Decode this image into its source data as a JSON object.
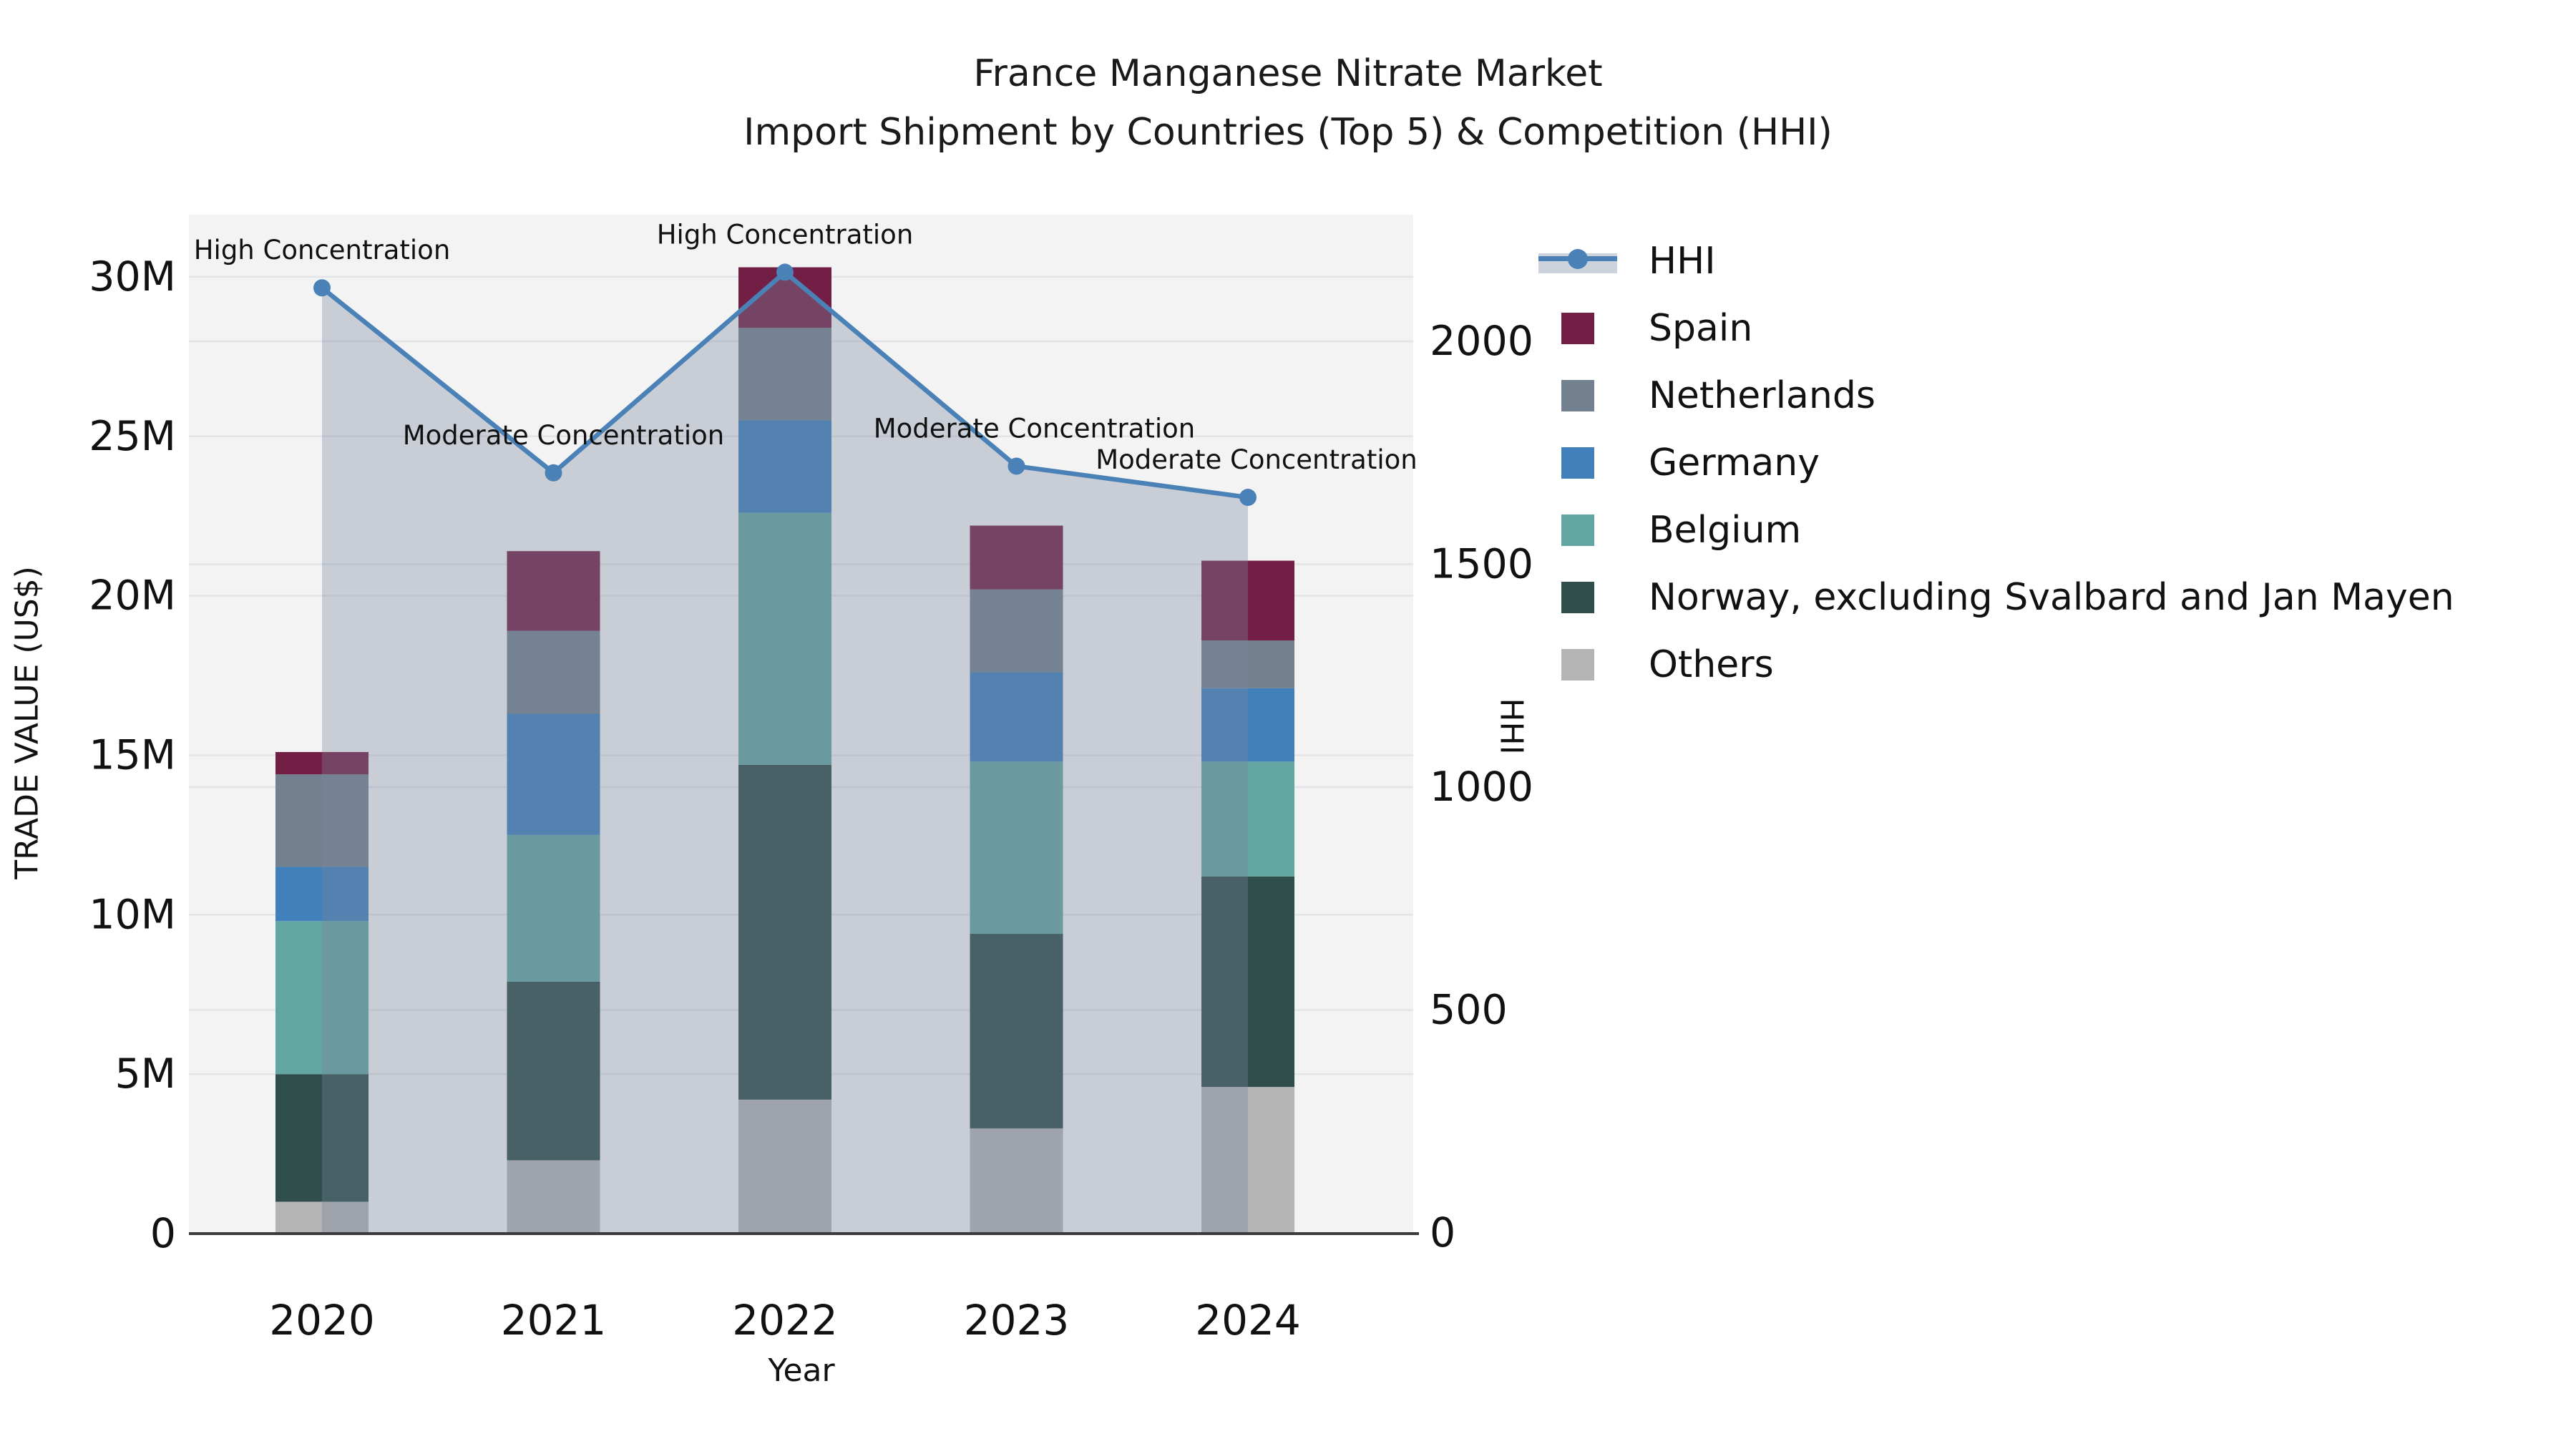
{
  "title": {
    "line1": "France Manganese Nitrate Market",
    "line2": "Import Shipment by Countries (Top 5) & Competition (HHI)"
  },
  "axes": {
    "x_label": "Year",
    "y_left_label": "TRADE VALUE (US$)",
    "y_right_label": "HHI",
    "y_left_ticks": [
      "0",
      "5M",
      "10M",
      "15M",
      "20M",
      "25M",
      "30M"
    ],
    "y_right_ticks": [
      "0",
      "500",
      "1000",
      "1500",
      "2000"
    ],
    "y_left_max_millions": 30,
    "y_right_max": 2000
  },
  "colors": {
    "plot_background": "#f3f3f4",
    "gridline": "#e3e4e7",
    "axis_spine": "#3b3b3b",
    "hhi_line": "#4a82b8",
    "hhi_area": "rgba(120,134,158,0.35)",
    "legend_hhi_band": "#cdd3dc",
    "text": "#111111"
  },
  "chart_data": {
    "type": "bar+line",
    "title": "France Manganese Nitrate Market — Import Shipment by Countries (Top 5) & Competition (HHI)",
    "categories": [
      "2020",
      "2021",
      "2022",
      "2023",
      "2024"
    ],
    "bar_unit": "million US$",
    "stack_order_bottom_to_top": [
      "Others",
      "Norway, excluding Svalbard and Jan Mayen",
      "Belgium",
      "Germany",
      "Netherlands",
      "Spain"
    ],
    "series": [
      {
        "name": "Spain",
        "color": "#731f45",
        "values": [
          0.7,
          2.5,
          1.9,
          2.0,
          2.5
        ]
      },
      {
        "name": "Netherlands",
        "color": "#72808f",
        "values": [
          2.9,
          2.6,
          2.9,
          2.6,
          1.5
        ]
      },
      {
        "name": "Germany",
        "color": "#4180bb",
        "values": [
          1.7,
          3.8,
          2.9,
          2.8,
          2.3
        ]
      },
      {
        "name": "Belgium",
        "color": "#63a5a2",
        "values": [
          4.8,
          4.6,
          7.9,
          5.4,
          3.6
        ]
      },
      {
        "name": "Norway, excluding Svalbard and Jan Mayen",
        "color": "#2f4e4b",
        "values": [
          4.0,
          5.6,
          10.5,
          6.1,
          6.6
        ]
      },
      {
        "name": "Others",
        "color": "#b4b4b4",
        "values": [
          1.0,
          2.3,
          4.2,
          3.3,
          4.6
        ]
      }
    ],
    "bar_totals_millions": [
      15.1,
      21.4,
      30.3,
      22.2,
      21.1
    ],
    "line_series": {
      "name": "HHI",
      "axis": "right",
      "values": [
        2120,
        1705,
        2155,
        1720,
        1650
      ]
    },
    "annotations": [
      {
        "category": "2020",
        "text": "High Concentration"
      },
      {
        "category": "2021",
        "text": "Moderate Concentration"
      },
      {
        "category": "2022",
        "text": "High Concentration"
      },
      {
        "category": "2023",
        "text": "Moderate Concentration"
      },
      {
        "category": "2024",
        "text": "Moderate Concentration"
      }
    ],
    "legend_position": "right",
    "grid": "horizontal, both axes tick levels"
  },
  "legend": {
    "items": [
      {
        "label": "HHI",
        "type": "line-marker",
        "color": "#4a82b8",
        "band": "#cdd3dc"
      },
      {
        "label": "Spain",
        "type": "swatch",
        "color": "#731f45"
      },
      {
        "label": "Netherlands",
        "type": "swatch",
        "color": "#72808f"
      },
      {
        "label": "Germany",
        "type": "swatch",
        "color": "#4180bb"
      },
      {
        "label": "Belgium",
        "type": "swatch",
        "color": "#63a5a2"
      },
      {
        "label": "Norway, excluding Svalbard and Jan Mayen",
        "type": "swatch",
        "color": "#2f4e4b"
      },
      {
        "label": "Others",
        "type": "swatch",
        "color": "#b4b4b4"
      }
    ]
  }
}
